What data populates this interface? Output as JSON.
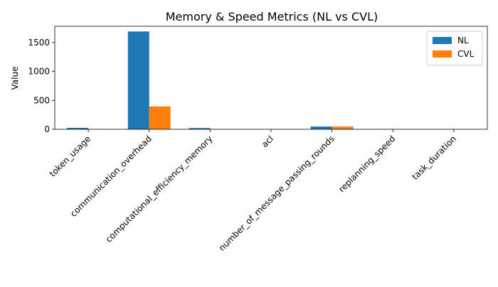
{
  "chart_data": {
    "type": "bar",
    "title": "Memory & Speed Metrics (NL vs CVL)",
    "xlabel": "",
    "ylabel": "Value",
    "ylim": [
      0,
      1780
    ],
    "yticks": [
      0,
      500,
      1000,
      1500
    ],
    "categories": [
      "token_usage",
      "communication_overhead",
      "computational_efficiency_memory",
      "acl",
      "number_of_message_passing_rounds",
      "replanning_speed",
      "task_duration"
    ],
    "series": [
      {
        "name": "NL",
        "color": "#1f77b4",
        "values": [
          25,
          1690,
          22,
          0,
          48,
          2,
          1
        ]
      },
      {
        "name": "CVL",
        "color": "#ff7f0e",
        "values": [
          3,
          395,
          2,
          0,
          48,
          1,
          1
        ]
      }
    ],
    "legend_position": "top-right",
    "grid": false
  }
}
